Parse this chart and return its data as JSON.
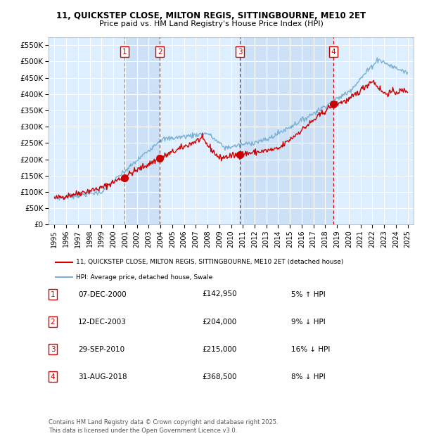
{
  "title_line1": "11, QUICKSTEP CLOSE, MILTON REGIS, SITTINGBOURNE, ME10 2ET",
  "title_line2": "Price paid vs. HM Land Registry's House Price Index (HPI)",
  "ylim": [
    0,
    575000
  ],
  "yticks": [
    0,
    50000,
    100000,
    150000,
    200000,
    250000,
    300000,
    350000,
    400000,
    450000,
    500000,
    550000
  ],
  "ytick_labels": [
    "£0",
    "£50K",
    "£100K",
    "£150K",
    "£200K",
    "£250K",
    "£300K",
    "£350K",
    "£400K",
    "£450K",
    "£500K",
    "£550K"
  ],
  "xlim_start": 1994.5,
  "xlim_end": 2025.5,
  "xticks": [
    1995,
    1996,
    1997,
    1998,
    1999,
    2000,
    2001,
    2002,
    2003,
    2004,
    2005,
    2006,
    2007,
    2008,
    2009,
    2010,
    2011,
    2012,
    2013,
    2014,
    2015,
    2016,
    2017,
    2018,
    2019,
    2020,
    2021,
    2022,
    2023,
    2024,
    2025
  ],
  "background_color": "#ddeeff",
  "grid_color": "#ffffff",
  "red_color": "#cc0000",
  "blue_color": "#7ab0d4",
  "transaction_dates": [
    2000.93,
    2003.95,
    2010.75,
    2018.67
  ],
  "transaction_prices": [
    142950,
    204000,
    215000,
    368500
  ],
  "transaction_labels": [
    "1",
    "2",
    "3",
    "4"
  ],
  "shade_color": "#cce0f5",
  "legend_line1": "11, QUICKSTEP CLOSE, MILTON REGIS, SITTINGBOURNE, ME10 2ET (detached house)",
  "legend_line2": "HPI: Average price, detached house, Swale",
  "table_entries": [
    {
      "num": "1",
      "date": "07-DEC-2000",
      "price": "£142,950",
      "hpi": "5% ↑ HPI"
    },
    {
      "num": "2",
      "date": "12-DEC-2003",
      "price": "£204,000",
      "hpi": "9% ↓ HPI"
    },
    {
      "num": "3",
      "date": "29-SEP-2010",
      "price": "£215,000",
      "hpi": "16% ↓ HPI"
    },
    {
      "num": "4",
      "date": "31-AUG-2018",
      "price": "£368,500",
      "hpi": "8% ↓ HPI"
    }
  ],
  "footer": "Contains HM Land Registry data © Crown copyright and database right 2025.\nThis data is licensed under the Open Government Licence v3.0."
}
